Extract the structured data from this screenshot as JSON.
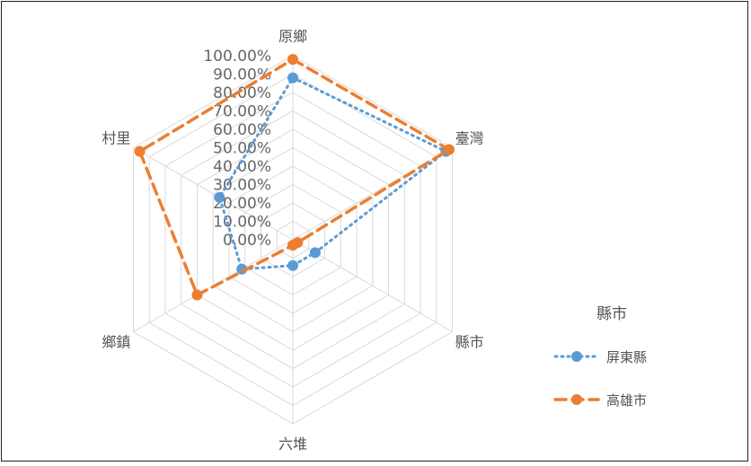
{
  "chart_data": {
    "type": "radar",
    "categories": [
      "原鄉",
      "臺灣",
      "縣市",
      "六堆",
      "鄉鎮",
      "村里"
    ],
    "ticks": [
      "0.00%",
      "10.00%",
      "20.00%",
      "30.00%",
      "40.00%",
      "50.00%",
      "60.00%",
      "70.00%",
      "80.00%",
      "90.00%",
      "100.00%"
    ],
    "ylim": [
      0,
      100
    ],
    "grid": true,
    "legend": {
      "title": "縣市",
      "placement": "right"
    },
    "series": [
      {
        "name": "屏東縣",
        "values": [
          88,
          96,
          14,
          14,
          32,
          46
        ],
        "color": "#5B9BD5",
        "dash": "dotted",
        "marker": "circle"
      },
      {
        "name": "高雄市",
        "values": [
          98,
          98,
          3,
          3,
          60,
          96
        ],
        "color": "#ED7D31",
        "dash": "dashed",
        "marker": "circle"
      }
    ]
  }
}
